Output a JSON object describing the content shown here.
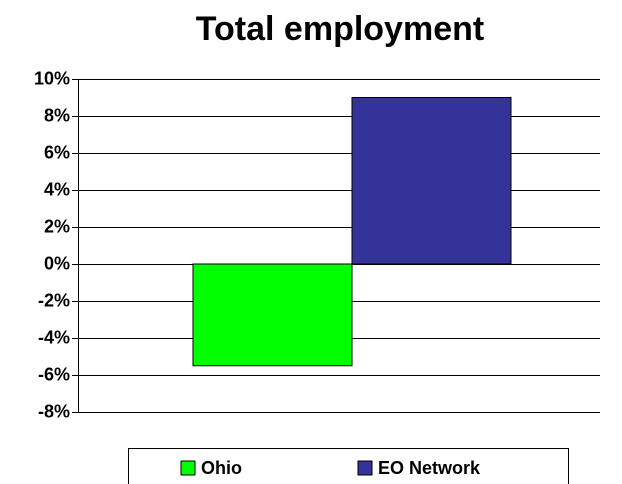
{
  "chart_data": {
    "type": "bar",
    "title": "Total employment",
    "categories": [
      null
    ],
    "series": [
      {
        "name": "Ohio",
        "color": "#00ff00",
        "values": [
          -5.5
        ]
      },
      {
        "name": "EO Network",
        "color": "#333399",
        "values": [
          9
        ]
      }
    ],
    "ylim": [
      -8,
      10
    ],
    "yticks": [
      {
        "value": -8,
        "label": "-8%"
      },
      {
        "value": -6,
        "label": "-6%"
      },
      {
        "value": -4,
        "label": "-4%"
      },
      {
        "value": -2,
        "label": "-2%"
      },
      {
        "value": 0,
        "label": "0%"
      },
      {
        "value": 2,
        "label": "2%"
      },
      {
        "value": 4,
        "label": "4%"
      },
      {
        "value": 6,
        "label": "6%"
      },
      {
        "value": 8,
        "label": "8%"
      },
      {
        "value": 10,
        "label": "10%"
      }
    ],
    "grid": true
  }
}
